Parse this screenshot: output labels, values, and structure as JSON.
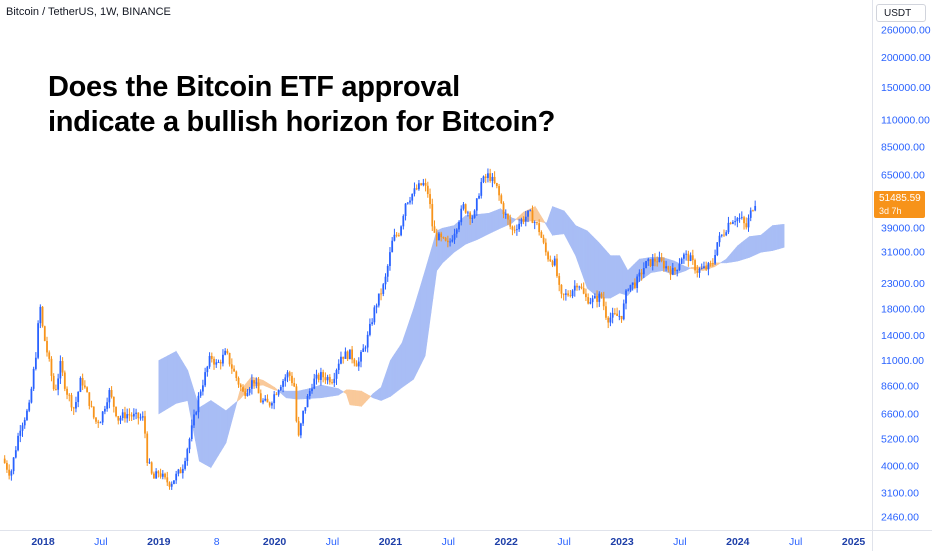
{
  "header": {
    "symbol": "Bitcoin / TetherUS, 1W, BINANCE",
    "headline_line1": "Does the Bitcoin ETF approval",
    "headline_line2": "indicate a bullish horizon for Bitcoin?"
  },
  "price_axis": {
    "currency": "USDT",
    "current_price": "51485.59",
    "countdown": "3d 7h",
    "tag_color": "#f7931a"
  },
  "colors": {
    "up": "#2962ff",
    "down": "#f7931a",
    "cloud_bull": "#a8bdf5",
    "cloud_bear": "#f9c99a",
    "axis_text": "#2962ff",
    "year_text": "#1e3fa8"
  },
  "chart_data": {
    "type": "candlestick",
    "title": "Bitcoin / TetherUS, 1W, BINANCE",
    "y_scale": "log",
    "ylim": [
      2200,
      300000
    ],
    "y_ticks": [
      "260000.00",
      "200000.00",
      "150000.00",
      "110000.00",
      "85000.00",
      "65000.00",
      "39000.00",
      "31000.00",
      "23000.00",
      "18000.00",
      "14000.00",
      "11000.00",
      "8600.00",
      "6600.00",
      "5200.00",
      "4000.00",
      "3100.00",
      "2460.00"
    ],
    "x_ticks": [
      {
        "label": "2018",
        "t": 2018.0,
        "year": true
      },
      {
        "label": "Jul",
        "t": 2018.5,
        "year": false
      },
      {
        "label": "2019",
        "t": 2019.0,
        "year": true
      },
      {
        "label": "8",
        "t": 2019.5,
        "year": false
      },
      {
        "label": "2020",
        "t": 2020.0,
        "year": true
      },
      {
        "label": "Jul",
        "t": 2020.5,
        "year": false
      },
      {
        "label": "2021",
        "t": 2021.0,
        "year": true
      },
      {
        "label": "Jul",
        "t": 2021.5,
        "year": false
      },
      {
        "label": "2022",
        "t": 2022.0,
        "year": true
      },
      {
        "label": "Jul",
        "t": 2022.5,
        "year": false
      },
      {
        "label": "2023",
        "t": 2023.0,
        "year": true
      },
      {
        "label": "Jul",
        "t": 2023.5,
        "year": false
      },
      {
        "label": "2024",
        "t": 2024.0,
        "year": true
      },
      {
        "label": "Jul",
        "t": 2024.5,
        "year": false
      },
      {
        "label": "2025",
        "t": 2025.0,
        "year": true
      }
    ],
    "price_path": [
      [
        2017.65,
        4300
      ],
      [
        2017.72,
        3700
      ],
      [
        2017.8,
        5800
      ],
      [
        2017.88,
        7000
      ],
      [
        2017.95,
        13000
      ],
      [
        2017.97,
        19500
      ],
      [
        2018.0,
        14500
      ],
      [
        2018.05,
        11000
      ],
      [
        2018.1,
        8000
      ],
      [
        2018.15,
        10500
      ],
      [
        2018.2,
        8300
      ],
      [
        2018.27,
        6900
      ],
      [
        2018.33,
        9300
      ],
      [
        2018.4,
        7400
      ],
      [
        2018.45,
        6100
      ],
      [
        2018.5,
        6300
      ],
      [
        2018.57,
        8200
      ],
      [
        2018.65,
        6300
      ],
      [
        2018.72,
        6600
      ],
      [
        2018.8,
        6400
      ],
      [
        2018.87,
        6300
      ],
      [
        2018.9,
        4300
      ],
      [
        2018.95,
        3500
      ],
      [
        2019.0,
        3800
      ],
      [
        2019.05,
        3500
      ],
      [
        2019.1,
        3400
      ],
      [
        2019.2,
        3900
      ],
      [
        2019.27,
        5300
      ],
      [
        2019.35,
        8000
      ],
      [
        2019.45,
        11500
      ],
      [
        2019.5,
        10500
      ],
      [
        2019.58,
        11800
      ],
      [
        2019.65,
        9800
      ],
      [
        2019.73,
        8000
      ],
      [
        2019.82,
        9200
      ],
      [
        2019.88,
        7500
      ],
      [
        2019.95,
        7200
      ],
      [
        2020.0,
        8000
      ],
      [
        2020.05,
        8800
      ],
      [
        2020.12,
        9800
      ],
      [
        2020.17,
        8600
      ],
      [
        2020.2,
        5000
      ],
      [
        2020.25,
        6800
      ],
      [
        2020.33,
        9000
      ],
      [
        2020.4,
        9500
      ],
      [
        2020.5,
        9200
      ],
      [
        2020.57,
        11500
      ],
      [
        2020.65,
        11700
      ],
      [
        2020.72,
        10600
      ],
      [
        2020.8,
        13500
      ],
      [
        2020.87,
        18500
      ],
      [
        2020.95,
        23000
      ],
      [
        2021.02,
        35000
      ],
      [
        2021.08,
        38000
      ],
      [
        2021.13,
        50000
      ],
      [
        2021.2,
        55000
      ],
      [
        2021.28,
        60000
      ],
      [
        2021.33,
        54000
      ],
      [
        2021.37,
        37000
      ],
      [
        2021.42,
        35500
      ],
      [
        2021.5,
        33000
      ],
      [
        2021.57,
        40000
      ],
      [
        2021.63,
        48000
      ],
      [
        2021.72,
        43000
      ],
      [
        2021.78,
        60000
      ],
      [
        2021.85,
        65000
      ],
      [
        2021.92,
        57000
      ],
      [
        2021.97,
        47000
      ],
      [
        2022.05,
        38000
      ],
      [
        2022.13,
        42000
      ],
      [
        2022.2,
        45000
      ],
      [
        2022.28,
        39000
      ],
      [
        2022.35,
        30000
      ],
      [
        2022.42,
        28000
      ],
      [
        2022.47,
        20000
      ],
      [
        2022.55,
        21000
      ],
      [
        2022.62,
        23500
      ],
      [
        2022.68,
        20000
      ],
      [
        2022.75,
        19500
      ],
      [
        2022.82,
        20500
      ],
      [
        2022.87,
        16500
      ],
      [
        2022.95,
        16800
      ],
      [
        2023.0,
        17000
      ],
      [
        2023.05,
        22500
      ],
      [
        2023.12,
        23000
      ],
      [
        2023.2,
        27500
      ],
      [
        2023.3,
        29000
      ],
      [
        2023.38,
        27000
      ],
      [
        2023.45,
        25500
      ],
      [
        2023.52,
        30000
      ],
      [
        2023.58,
        29500
      ],
      [
        2023.65,
        26000
      ],
      [
        2023.72,
        26500
      ],
      [
        2023.78,
        27500
      ],
      [
        2023.82,
        34000
      ],
      [
        2023.88,
        37500
      ],
      [
        2023.93,
        42000
      ],
      [
        2023.98,
        43000
      ],
      [
        2024.03,
        42500
      ],
      [
        2024.07,
        39000
      ],
      [
        2024.1,
        43500
      ],
      [
        2024.13,
        48000
      ],
      [
        2024.16,
        51486
      ]
    ],
    "ichimoku_cloud": [
      [
        2019.0,
        11000,
        6600
      ],
      [
        2019.15,
        12000,
        7300
      ],
      [
        2019.25,
        10000,
        7500
      ],
      [
        2019.35,
        7000,
        4200
      ],
      [
        2019.45,
        7500,
        3950
      ],
      [
        2019.58,
        6800,
        5000
      ],
      [
        2019.7,
        7600,
        8200
      ],
      [
        2019.8,
        8600,
        9400
      ],
      [
        2019.9,
        8700,
        9100
      ],
      [
        2020.0,
        8300,
        8500
      ],
      [
        2020.1,
        8200,
        7700
      ],
      [
        2020.2,
        8200,
        7600
      ],
      [
        2020.3,
        8400,
        7650
      ],
      [
        2020.4,
        8700,
        7700
      ],
      [
        2020.55,
        8400,
        7900
      ],
      [
        2020.62,
        8000,
        8300
      ],
      [
        2020.65,
        7200,
        8300
      ],
      [
        2020.75,
        7100,
        8200
      ],
      [
        2020.85,
        8000,
        7700
      ],
      [
        2020.92,
        8500,
        7500
      ],
      [
        2021.0,
        11000,
        7800
      ],
      [
        2021.1,
        13000,
        8500
      ],
      [
        2021.2,
        18000,
        9200
      ],
      [
        2021.3,
        26000,
        11500
      ],
      [
        2021.4,
        38000,
        26000
      ],
      [
        2021.45,
        39000,
        28000
      ],
      [
        2021.55,
        40000,
        31000
      ],
      [
        2021.65,
        44000,
        33500
      ],
      [
        2021.75,
        44500,
        35000
      ],
      [
        2021.85,
        45000,
        37000
      ],
      [
        2021.95,
        47000,
        39000
      ],
      [
        2022.05,
        43000,
        41000
      ],
      [
        2022.15,
        41500,
        45500
      ],
      [
        2022.25,
        42000,
        48000
      ],
      [
        2022.35,
        41000,
        40000
      ],
      [
        2022.4,
        48000,
        36500
      ],
      [
        2022.5,
        46000,
        37000
      ],
      [
        2022.6,
        40000,
        30000
      ],
      [
        2022.7,
        38000,
        22000
      ],
      [
        2022.8,
        34000,
        20000
      ],
      [
        2022.9,
        30000,
        20000
      ],
      [
        2022.98,
        30000,
        21000
      ],
      [
        2023.05,
        26000,
        20500
      ],
      [
        2023.15,
        29000,
        23500
      ],
      [
        2023.25,
        29500,
        25500
      ],
      [
        2023.35,
        29500,
        26000
      ],
      [
        2023.45,
        28500,
        25000
      ],
      [
        2023.55,
        27000,
        26000
      ],
      [
        2023.6,
        26500,
        26800
      ],
      [
        2023.7,
        26000,
        27000
      ],
      [
        2023.8,
        27000,
        28000
      ],
      [
        2023.9,
        29000,
        28000
      ],
      [
        2024.0,
        33000,
        28500
      ],
      [
        2024.1,
        36000,
        29500
      ],
      [
        2024.2,
        36500,
        31000
      ],
      [
        2024.3,
        40000,
        31500
      ],
      [
        2024.4,
        40500,
        32500
      ]
    ]
  }
}
